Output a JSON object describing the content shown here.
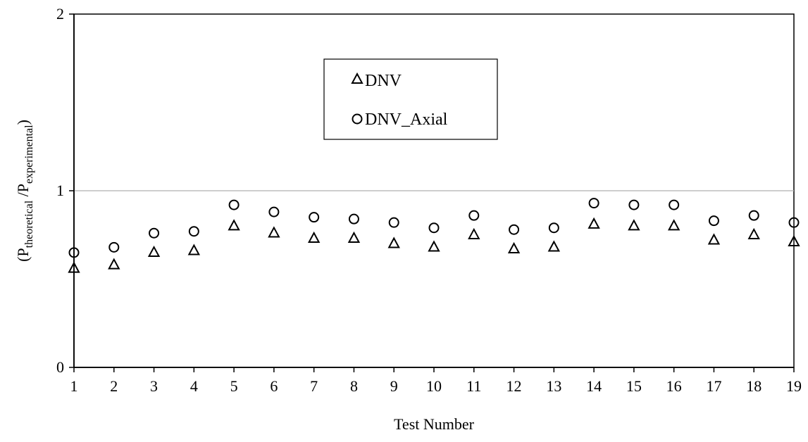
{
  "chart_data": {
    "type": "scatter",
    "xlabel": "Test Number",
    "ylabel": {
      "main": "P",
      "sub_numerator": "theoretical",
      "sub_denominator": "experimental"
    },
    "x": [
      1,
      2,
      3,
      4,
      5,
      6,
      7,
      8,
      9,
      10,
      11,
      12,
      13,
      14,
      15,
      16,
      17,
      18,
      19
    ],
    "xlim": [
      1,
      19
    ],
    "ylim": [
      0,
      2
    ],
    "xticks": [
      "1",
      "2",
      "3",
      "4",
      "5",
      "6",
      "7",
      "8",
      "9",
      "10",
      "11",
      "12",
      "13",
      "14",
      "15",
      "16",
      "17",
      "18",
      "19"
    ],
    "yticks": [
      "0",
      "1",
      "2"
    ],
    "grid": {
      "horizontal_line_at": 1
    },
    "legend": {
      "placement": "top-center"
    },
    "series": [
      {
        "name": "DNV",
        "marker": "triangle",
        "values": [
          0.56,
          0.58,
          0.65,
          0.66,
          0.8,
          0.76,
          0.73,
          0.73,
          0.7,
          0.68,
          0.75,
          0.67,
          0.68,
          0.81,
          0.8,
          0.8,
          0.72,
          0.75,
          0.71
        ]
      },
      {
        "name": "DNV_Axial",
        "marker": "circle",
        "values": [
          0.65,
          0.68,
          0.76,
          0.77,
          0.92,
          0.88,
          0.85,
          0.84,
          0.82,
          0.79,
          0.86,
          0.78,
          0.79,
          0.93,
          0.92,
          0.92,
          0.83,
          0.86,
          0.82
        ]
      }
    ],
    "colors": {
      "marker": "#000000",
      "gridline": "#b0b0b0",
      "axis": "#000000"
    }
  }
}
